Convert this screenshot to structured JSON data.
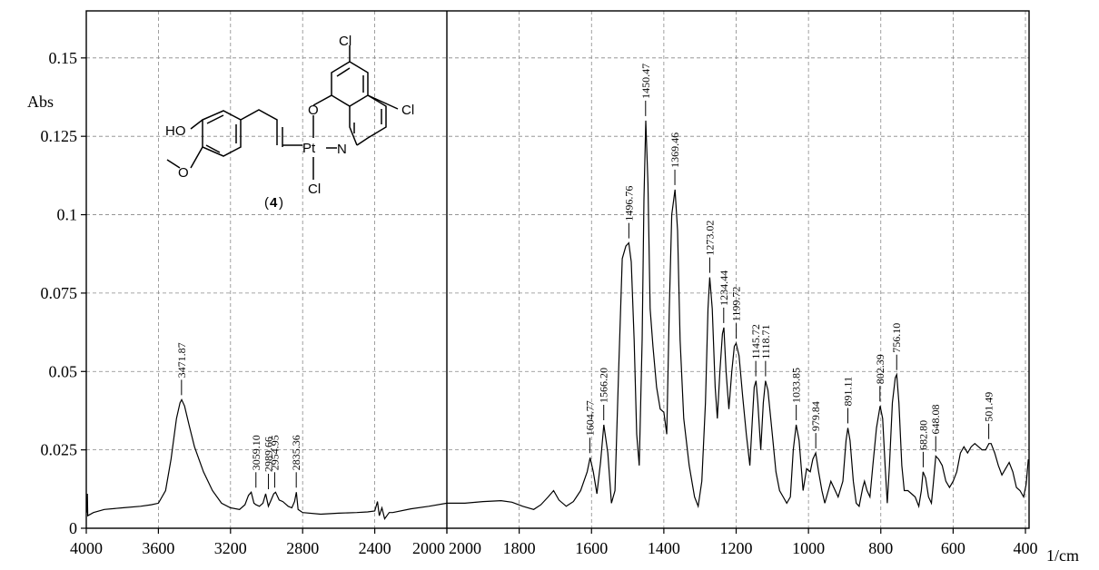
{
  "chart_data": {
    "type": "line",
    "title": "",
    "ylabel": "Abs",
    "xunit": "1/cm",
    "grid": true,
    "xlim_left_panel": [
      4000,
      2000
    ],
    "xlim_right_panel": [
      2000,
      390
    ],
    "ylim": [
      0,
      0.165
    ],
    "xticks": [
      "4000",
      "3600",
      "3200",
      "2800",
      "2400",
      "2000",
      "2000",
      "1800",
      "1600",
      "1400",
      "1200",
      "1000",
      "800",
      "600",
      "400"
    ],
    "yticks": [
      "0",
      "0.025",
      "0.05",
      "0.075",
      "0.1",
      "0.125",
      "0.15"
    ],
    "series": [
      {
        "points": [
          [
            3996,
            0.005
          ],
          [
            3994,
            0.011
          ],
          [
            3992,
            0.004
          ],
          [
            3960,
            0.005
          ],
          [
            3900,
            0.006
          ],
          [
            3800,
            0.0065
          ],
          [
            3700,
            0.007
          ],
          [
            3640,
            0.0075
          ],
          [
            3600,
            0.008
          ],
          [
            3560,
            0.012
          ],
          [
            3530,
            0.022
          ],
          [
            3500,
            0.035
          ],
          [
            3480,
            0.04
          ],
          [
            3471,
            0.041
          ],
          [
            3455,
            0.039
          ],
          [
            3430,
            0.033
          ],
          [
            3400,
            0.026
          ],
          [
            3350,
            0.018
          ],
          [
            3300,
            0.012
          ],
          [
            3250,
            0.008
          ],
          [
            3200,
            0.0065
          ],
          [
            3150,
            0.006
          ],
          [
            3120,
            0.0075
          ],
          [
            3100,
            0.0105
          ],
          [
            3085,
            0.0115
          ],
          [
            3070,
            0.008
          ],
          [
            3059,
            0.0075
          ],
          [
            3040,
            0.007
          ],
          [
            3020,
            0.008
          ],
          [
            3005,
            0.011
          ],
          [
            2990,
            0.007
          ],
          [
            2975,
            0.009
          ],
          [
            2960,
            0.011
          ],
          [
            2950,
            0.0115
          ],
          [
            2930,
            0.009
          ],
          [
            2910,
            0.0085
          ],
          [
            2880,
            0.007
          ],
          [
            2860,
            0.0065
          ],
          [
            2845,
            0.0085
          ],
          [
            2835,
            0.0115
          ],
          [
            2825,
            0.006
          ],
          [
            2800,
            0.005
          ],
          [
            2700,
            0.0045
          ],
          [
            2600,
            0.0048
          ],
          [
            2500,
            0.005
          ],
          [
            2440,
            0.0052
          ],
          [
            2400,
            0.0055
          ],
          [
            2385,
            0.0085
          ],
          [
            2375,
            0.004
          ],
          [
            2360,
            0.0065
          ],
          [
            2345,
            0.003
          ],
          [
            2320,
            0.005
          ],
          [
            2300,
            0.005
          ],
          [
            2200,
            0.0062
          ],
          [
            2100,
            0.007
          ],
          [
            2000,
            0.008
          ],
          [
            1950,
            0.008
          ],
          [
            1900,
            0.0085
          ],
          [
            1850,
            0.0088
          ],
          [
            1820,
            0.0083
          ],
          [
            1790,
            0.007
          ],
          [
            1760,
            0.006
          ],
          [
            1740,
            0.0075
          ],
          [
            1720,
            0.01
          ],
          [
            1705,
            0.012
          ],
          [
            1690,
            0.009
          ],
          [
            1670,
            0.007
          ],
          [
            1650,
            0.0085
          ],
          [
            1630,
            0.012
          ],
          [
            1612,
            0.018
          ],
          [
            1604,
            0.0225
          ],
          [
            1595,
            0.018
          ],
          [
            1585,
            0.011
          ],
          [
            1575,
            0.021
          ],
          [
            1566,
            0.033
          ],
          [
            1555,
            0.024
          ],
          [
            1545,
            0.008
          ],
          [
            1535,
            0.012
          ],
          [
            1525,
            0.05
          ],
          [
            1515,
            0.086
          ],
          [
            1505,
            0.09
          ],
          [
            1497,
            0.091
          ],
          [
            1490,
            0.085
          ],
          [
            1482,
            0.06
          ],
          [
            1475,
            0.03
          ],
          [
            1468,
            0.02
          ],
          [
            1460,
            0.06
          ],
          [
            1455,
            0.105
          ],
          [
            1450,
            0.13
          ],
          [
            1444,
            0.11
          ],
          [
            1438,
            0.07
          ],
          [
            1430,
            0.058
          ],
          [
            1420,
            0.045
          ],
          [
            1410,
            0.038
          ],
          [
            1400,
            0.037
          ],
          [
            1392,
            0.03
          ],
          [
            1385,
            0.07
          ],
          [
            1378,
            0.1
          ],
          [
            1369,
            0.108
          ],
          [
            1362,
            0.095
          ],
          [
            1355,
            0.06
          ],
          [
            1345,
            0.035
          ],
          [
            1330,
            0.02
          ],
          [
            1315,
            0.01
          ],
          [
            1305,
            0.007
          ],
          [
            1295,
            0.015
          ],
          [
            1285,
            0.04
          ],
          [
            1278,
            0.07
          ],
          [
            1273,
            0.08
          ],
          [
            1266,
            0.07
          ],
          [
            1258,
            0.045
          ],
          [
            1252,
            0.035
          ],
          [
            1245,
            0.05
          ],
          [
            1238,
            0.062
          ],
          [
            1234,
            0.064
          ],
          [
            1228,
            0.05
          ],
          [
            1220,
            0.038
          ],
          [
            1212,
            0.05
          ],
          [
            1205,
            0.058
          ],
          [
            1200,
            0.059
          ],
          [
            1192,
            0.055
          ],
          [
            1182,
            0.042
          ],
          [
            1172,
            0.03
          ],
          [
            1162,
            0.02
          ],
          [
            1155,
            0.035
          ],
          [
            1150,
            0.045
          ],
          [
            1145,
            0.047
          ],
          [
            1140,
            0.04
          ],
          [
            1132,
            0.025
          ],
          [
            1125,
            0.04
          ],
          [
            1119,
            0.047
          ],
          [
            1112,
            0.044
          ],
          [
            1100,
            0.03
          ],
          [
            1090,
            0.018
          ],
          [
            1080,
            0.012
          ],
          [
            1070,
            0.01
          ],
          [
            1060,
            0.008
          ],
          [
            1050,
            0.01
          ],
          [
            1042,
            0.025
          ],
          [
            1034,
            0.033
          ],
          [
            1026,
            0.028
          ],
          [
            1015,
            0.012
          ],
          [
            1005,
            0.019
          ],
          [
            995,
            0.018
          ],
          [
            988,
            0.022
          ],
          [
            980,
            0.024
          ],
          [
            972,
            0.018
          ],
          [
            963,
            0.012
          ],
          [
            955,
            0.008
          ],
          [
            945,
            0.012
          ],
          [
            938,
            0.015
          ],
          [
            930,
            0.013
          ],
          [
            918,
            0.01
          ],
          [
            905,
            0.015
          ],
          [
            896,
            0.028
          ],
          [
            891,
            0.032
          ],
          [
            885,
            0.028
          ],
          [
            876,
            0.015
          ],
          [
            868,
            0.008
          ],
          [
            860,
            0.007
          ],
          [
            850,
            0.013
          ],
          [
            845,
            0.015
          ],
          [
            838,
            0.012
          ],
          [
            830,
            0.01
          ],
          [
            822,
            0.02
          ],
          [
            812,
            0.032
          ],
          [
            802,
            0.039
          ],
          [
            795,
            0.035
          ],
          [
            788,
            0.02
          ],
          [
            782,
            0.008
          ],
          [
            776,
            0.02
          ],
          [
            768,
            0.04
          ],
          [
            760,
            0.048
          ],
          [
            756,
            0.049
          ],
          [
            750,
            0.04
          ],
          [
            742,
            0.02
          ],
          [
            735,
            0.012
          ],
          [
            725,
            0.012
          ],
          [
            715,
            0.011
          ],
          [
            705,
            0.01
          ],
          [
            695,
            0.007
          ],
          [
            688,
            0.012
          ],
          [
            683,
            0.018
          ],
          [
            676,
            0.016
          ],
          [
            668,
            0.01
          ],
          [
            660,
            0.008
          ],
          [
            655,
            0.014
          ],
          [
            648,
            0.023
          ],
          [
            640,
            0.022
          ],
          [
            630,
            0.02
          ],
          [
            620,
            0.015
          ],
          [
            610,
            0.013
          ],
          [
            600,
            0.015
          ],
          [
            590,
            0.018
          ],
          [
            580,
            0.024
          ],
          [
            570,
            0.026
          ],
          [
            560,
            0.024
          ],
          [
            550,
            0.026
          ],
          [
            540,
            0.027
          ],
          [
            530,
            0.026
          ],
          [
            520,
            0.025
          ],
          [
            510,
            0.025
          ],
          [
            501,
            0.027
          ],
          [
            495,
            0.027
          ],
          [
            485,
            0.024
          ],
          [
            475,
            0.02
          ],
          [
            465,
            0.017
          ],
          [
            455,
            0.019
          ],
          [
            445,
            0.021
          ],
          [
            435,
            0.018
          ],
          [
            425,
            0.013
          ],
          [
            415,
            0.012
          ],
          [
            405,
            0.01
          ],
          [
            398,
            0.014
          ],
          [
            392,
            0.022
          ]
        ]
      }
    ],
    "peak_labels": [
      {
        "x": 3471.87,
        "y": 0.041,
        "label": "3471.87"
      },
      {
        "x": 3059.1,
        "y": 0.0115,
        "label": "3059.10"
      },
      {
        "x": 2989.66,
        "y": 0.011,
        "label": "2989.66"
      },
      {
        "x": 2954.95,
        "y": 0.0115,
        "label": "2954.95"
      },
      {
        "x": 2835.36,
        "y": 0.0115,
        "label": "2835.36"
      },
      {
        "x": 1604.77,
        "y": 0.0225,
        "label": "1604.77"
      },
      {
        "x": 1566.2,
        "y": 0.033,
        "label": "1566.20"
      },
      {
        "x": 1496.76,
        "y": 0.091,
        "label": "1496.76"
      },
      {
        "x": 1450.47,
        "y": 0.13,
        "label": "1450.47"
      },
      {
        "x": 1369.46,
        "y": 0.108,
        "label": "1369.46"
      },
      {
        "x": 1273.02,
        "y": 0.08,
        "label": "1273.02"
      },
      {
        "x": 1234.44,
        "y": 0.064,
        "label": "1234.44"
      },
      {
        "x": 1199.72,
        "y": 0.059,
        "label": "1199.72"
      },
      {
        "x": 1145.72,
        "y": 0.047,
        "label": "1145.72"
      },
      {
        "x": 1118.71,
        "y": 0.047,
        "label": "1118.71"
      },
      {
        "x": 1033.85,
        "y": 0.033,
        "label": "1033.85"
      },
      {
        "x": 979.84,
        "y": 0.024,
        "label": "979.84"
      },
      {
        "x": 891.11,
        "y": 0.032,
        "label": "891.11"
      },
      {
        "x": 802.39,
        "y": 0.039,
        "label": "802.39"
      },
      {
        "x": 756.1,
        "y": 0.049,
        "label": "756.10"
      },
      {
        "x": 682.8,
        "y": 0.018,
        "label": "682.80"
      },
      {
        "x": 648.08,
        "y": 0.023,
        "label": "648.08"
      },
      {
        "x": 501.49,
        "y": 0.027,
        "label": "501.49"
      }
    ]
  },
  "structure": {
    "compound_number": "4",
    "atom_labels": [
      "HO",
      "O",
      "O",
      "Pt",
      "N",
      "Cl",
      "Cl",
      "Cl"
    ]
  }
}
